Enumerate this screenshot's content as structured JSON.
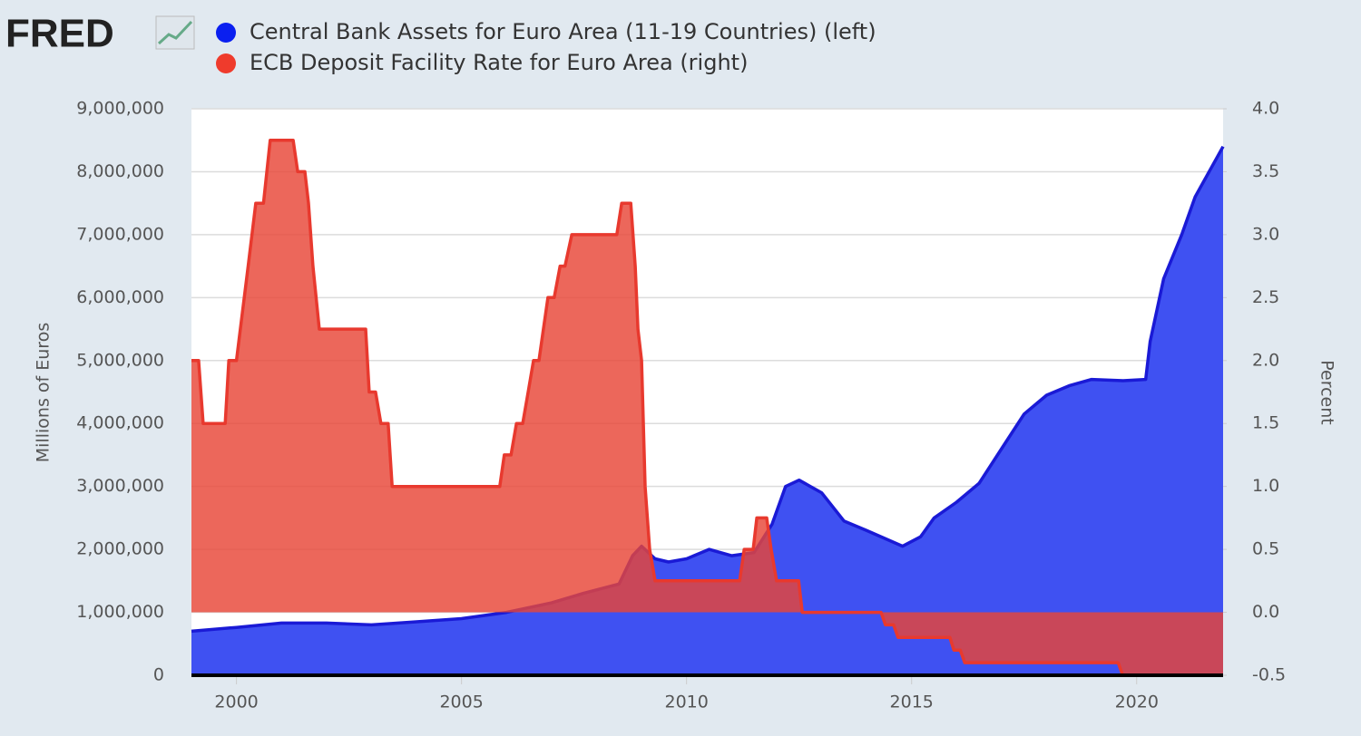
{
  "logo": "FRED",
  "chart_data": {
    "type": "area",
    "x_label": null,
    "y_label": "Millions of Euros",
    "y2_label": "Percent",
    "xlim": [
      1999,
      2021.92
    ],
    "xticks": [
      2000,
      2005,
      2010,
      2015,
      2020
    ],
    "ylim": [
      0,
      9000000
    ],
    "yticks": [
      0,
      {
        "value": 1000000,
        "label": "1,000,000"
      },
      {
        "value": 2000000,
        "label": "2,000,000"
      },
      {
        "value": 3000000,
        "label": "3,000,000"
      },
      {
        "value": 4000000,
        "label": "4,000,000"
      },
      {
        "value": 5000000,
        "label": "5,000,000"
      },
      {
        "value": 6000000,
        "label": "6,000,000"
      },
      {
        "value": 7000000,
        "label": "7,000,000"
      },
      {
        "value": 8000000,
        "label": "8,000,000"
      },
      {
        "value": 9000000,
        "label": "9,000,000"
      }
    ],
    "y2lim": [
      -0.5,
      4.0
    ],
    "y2ticks": [
      -0.5,
      {
        "value": 0,
        "label": "0.0"
      },
      0.5,
      {
        "value": 1,
        "label": "1.0"
      },
      1.5,
      {
        "value": 2,
        "label": "2.0"
      },
      2.5,
      {
        "value": 3,
        "label": "3.0"
      },
      3.5,
      {
        "value": 4,
        "label": "4.0"
      }
    ],
    "grid": true,
    "series": [
      {
        "name": "Central Bank Assets for Euro Area (11-19 Countries) (left)",
        "color": "#1a1ad6",
        "fill": "#3f51f2",
        "axis": "y",
        "x": [
          1999.0,
          2000.0,
          2001.0,
          2002.0,
          2003.0,
          2004.0,
          2005.0,
          2006.0,
          2007.0,
          2007.7,
          2008.5,
          2008.8,
          2009.0,
          2009.3,
          2009.6,
          2010.0,
          2010.5,
          2011.0,
          2011.5,
          2011.9,
          2012.2,
          2012.5,
          2013.0,
          2013.5,
          2014.0,
          2014.8,
          2015.2,
          2015.5,
          2016.0,
          2016.5,
          2017.0,
          2017.5,
          2018.0,
          2018.5,
          2019.0,
          2019.7,
          2020.2,
          2020.3,
          2020.6,
          2021.0,
          2021.3,
          2021.92
        ],
        "values": [
          700000,
          760000,
          830000,
          830000,
          800000,
          850000,
          900000,
          1000000,
          1150000,
          1300000,
          1450000,
          1900000,
          2050000,
          1850000,
          1800000,
          1850000,
          2000000,
          1900000,
          1950000,
          2400000,
          3000000,
          3100000,
          2900000,
          2450000,
          2300000,
          2050000,
          2200000,
          2500000,
          2750000,
          3050000,
          3600000,
          4150000,
          4450000,
          4600000,
          4700000,
          4680000,
          4700000,
          5300000,
          6300000,
          7000000,
          7600000,
          8400000
        ]
      },
      {
        "name": "ECB Deposit Facility Rate for Euro Area (right)",
        "color": "#e8392e",
        "fill": "rgba(232,70,55,0.82)",
        "axis": "y2",
        "x": [
          1999.0,
          1999.16,
          1999.26,
          1999.75,
          1999.83,
          2000.0,
          2000.26,
          2000.43,
          2000.6,
          2000.75,
          2001.26,
          2001.36,
          2001.52,
          2001.6,
          2001.7,
          2001.84,
          2002.87,
          2002.95,
          2003.09,
          2003.21,
          2003.37,
          2003.46,
          2005.85,
          2005.95,
          2006.1,
          2006.22,
          2006.36,
          2006.48,
          2006.6,
          2006.72,
          2006.82,
          2006.92,
          2007.06,
          2007.19,
          2007.3,
          2007.45,
          2008.45,
          2008.56,
          2008.76,
          2008.86,
          2008.92,
          2009.0,
          2009.08,
          2009.18,
          2009.3,
          2011.18,
          2011.28,
          2011.48,
          2011.56,
          2011.78,
          2011.88,
          2012.0,
          2012.49,
          2012.57,
          2014.32,
          2014.42,
          2014.6,
          2014.7,
          2015.85,
          2015.94,
          2016.08,
          2016.18,
          2019.59,
          2019.69,
          2021.92
        ],
        "values": [
          2.0,
          2.0,
          1.5,
          1.5,
          2.0,
          2.0,
          2.75,
          3.25,
          3.25,
          3.75,
          3.75,
          3.5,
          3.5,
          3.25,
          2.75,
          2.25,
          2.25,
          1.75,
          1.75,
          1.5,
          1.5,
          1.0,
          1.0,
          1.25,
          1.25,
          1.5,
          1.5,
          1.75,
          2.0,
          2.0,
          2.25,
          2.5,
          2.5,
          2.75,
          2.75,
          3.0,
          3.0,
          3.25,
          3.25,
          2.75,
          2.25,
          2.0,
          1.0,
          0.5,
          0.25,
          0.25,
          0.5,
          0.5,
          0.75,
          0.75,
          0.5,
          0.25,
          0.25,
          0.0,
          0.0,
          -0.1,
          -0.1,
          -0.2,
          -0.2,
          -0.3,
          -0.3,
          -0.4,
          -0.4,
          -0.5,
          -0.5
        ]
      }
    ]
  }
}
